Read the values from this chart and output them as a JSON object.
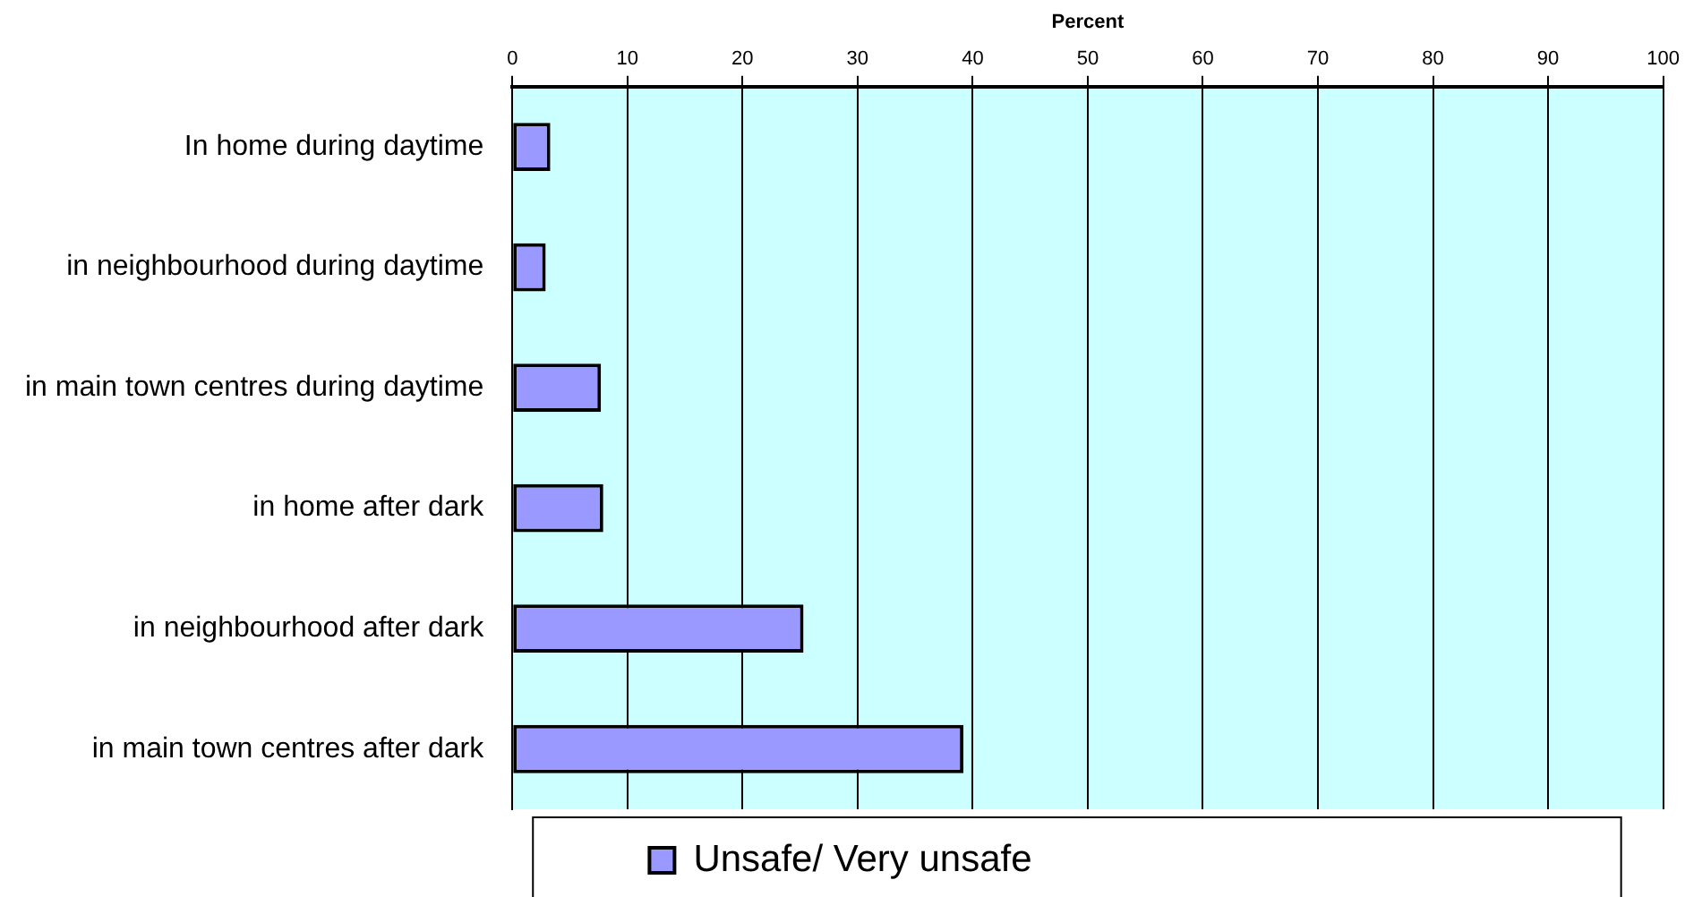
{
  "chart_data": {
    "type": "bar",
    "orientation": "horizontal",
    "xlabel": "Percent",
    "categories": [
      "In home during daytime",
      "in neighbourhood during daytime",
      "in main town centres during daytime",
      "in home after dark",
      "in neighbourhood after dark",
      "in main town centres after dark"
    ],
    "series": [
      {
        "name": "Unsafe/ Very unsafe",
        "color": "#9999ff",
        "values": [
          3.3,
          2.9,
          7.7,
          7.9,
          25.3,
          39.2
        ]
      }
    ],
    "xlim": [
      0,
      100
    ],
    "xticks": [
      0,
      10,
      20,
      30,
      40,
      50,
      60,
      70,
      80,
      90,
      100
    ],
    "grid": "x",
    "legend": "bottom"
  }
}
